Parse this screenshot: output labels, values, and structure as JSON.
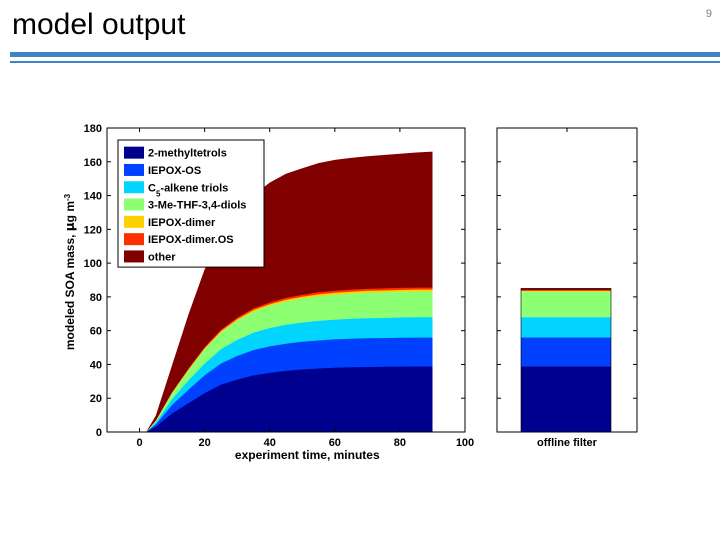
{
  "slide": {
    "title": "model output",
    "number": "9"
  },
  "chart_data": [
    {
      "type": "area",
      "stacked": true,
      "xlabel": "experiment time, minutes",
      "ylabel": "modeled SOA mass, µg m-3",
      "ylabel_parts": {
        "main": "modeled SOA mass, ",
        "mu": "µ",
        "unit": "g m",
        "sup": "-3"
      },
      "xlim": [
        -10,
        100
      ],
      "ylim": [
        0,
        180
      ],
      "x_ticks": [
        0,
        20,
        40,
        60,
        80,
        100
      ],
      "y_ticks": [
        0,
        20,
        40,
        60,
        80,
        100,
        120,
        140,
        160,
        180
      ],
      "grid": false,
      "legend_position": "top-left",
      "x": [
        2,
        5,
        10,
        15,
        20,
        25,
        30,
        35,
        40,
        45,
        50,
        55,
        60,
        65,
        70,
        75,
        80,
        85,
        90
      ],
      "series": [
        {
          "name": "2-methyltetrols",
          "label_main": "2-methyltetrols",
          "color": "#00008f",
          "values": [
            0,
            3,
            11,
            17,
            23,
            28,
            31,
            33.5,
            35,
            36.2,
            37,
            37.6,
            38,
            38.3,
            38.5,
            38.6,
            38.7,
            38.8,
            38.8
          ]
        },
        {
          "name": "IEPOX-OS",
          "label_main": "IEPOX-OS",
          "color": "#0040ff",
          "values": [
            0,
            1.5,
            5,
            8,
            10.5,
            12.5,
            14,
            15,
            15.7,
            16.1,
            16.4,
            16.6,
            16.8,
            16.9,
            17,
            17,
            17.1,
            17.1,
            17.1
          ]
        },
        {
          "name": "C5-alkene triols",
          "label_main": "C",
          "label_sub": "5",
          "label_rest": "-alkene triols",
          "color": "#00d4ff",
          "values": [
            0,
            1,
            3.5,
            5.5,
            7,
            8.5,
            9.5,
            10.3,
            10.8,
            11.2,
            11.4,
            11.6,
            11.7,
            11.8,
            11.9,
            11.9,
            12,
            12,
            12
          ]
        },
        {
          "name": "3-Me-THF-3,4-diols",
          "label_main": "3-Me-THF-3,4-diols",
          "color": "#8cff73",
          "values": [
            0,
            1,
            3.5,
            6,
            8.5,
            10,
            11.5,
            12.5,
            13.2,
            13.8,
            14.3,
            14.6,
            14.8,
            15,
            15.1,
            15.2,
            15.2,
            15.3,
            15.3
          ]
        },
        {
          "name": "IEPOX-dimer",
          "label_main": "IEPOX-dimer",
          "color": "#ffd000",
          "values": [
            0,
            0.1,
            0.3,
            0.5,
            0.6,
            0.7,
            0.8,
            0.9,
            1,
            1,
            1,
            1.1,
            1.1,
            1.1,
            1.1,
            1.1,
            1.1,
            1.1,
            1.1
          ]
        },
        {
          "name": "IEPOX-dimer.OS",
          "label_main": "IEPOX-dimer.OS",
          "color": "#ff3000",
          "values": [
            0,
            0.1,
            0.3,
            0.5,
            0.6,
            0.8,
            0.9,
            1,
            1,
            1.1,
            1.1,
            1.2,
            1.2,
            1.2,
            1.2,
            1.2,
            1.2,
            1.2,
            1.2
          ]
        },
        {
          "name": "other",
          "label_main": "other",
          "color": "#800000",
          "values": [
            0,
            3,
            16,
            32,
            46,
            55,
            62,
            67,
            71,
            73.5,
            75,
            76.5,
            77.5,
            78,
            78.5,
            79,
            79.5,
            80,
            80.5
          ]
        }
      ]
    },
    {
      "type": "bar",
      "stacked": true,
      "categories": [
        "offline filter"
      ],
      "ylim": [
        0,
        180
      ],
      "y_ticks": [
        0,
        20,
        40,
        60,
        80,
        100,
        120,
        140,
        160,
        180
      ],
      "series": [
        {
          "name": "2-methyltetrols",
          "color": "#00008f",
          "values": [
            39
          ]
        },
        {
          "name": "IEPOX-OS",
          "color": "#0040ff",
          "values": [
            17
          ]
        },
        {
          "name": "C5-alkene triols",
          "color": "#00d4ff",
          "values": [
            12
          ]
        },
        {
          "name": "3-Me-THF-3,4-diols",
          "color": "#8cff73",
          "values": [
            15
          ]
        },
        {
          "name": "IEPOX-dimer",
          "color": "#ffd000",
          "values": [
            0.5
          ]
        },
        {
          "name": "IEPOX-dimer.OS",
          "color": "#ff3000",
          "values": [
            0.5
          ]
        },
        {
          "name": "other",
          "color": "#800000",
          "values": [
            1
          ]
        }
      ]
    }
  ]
}
